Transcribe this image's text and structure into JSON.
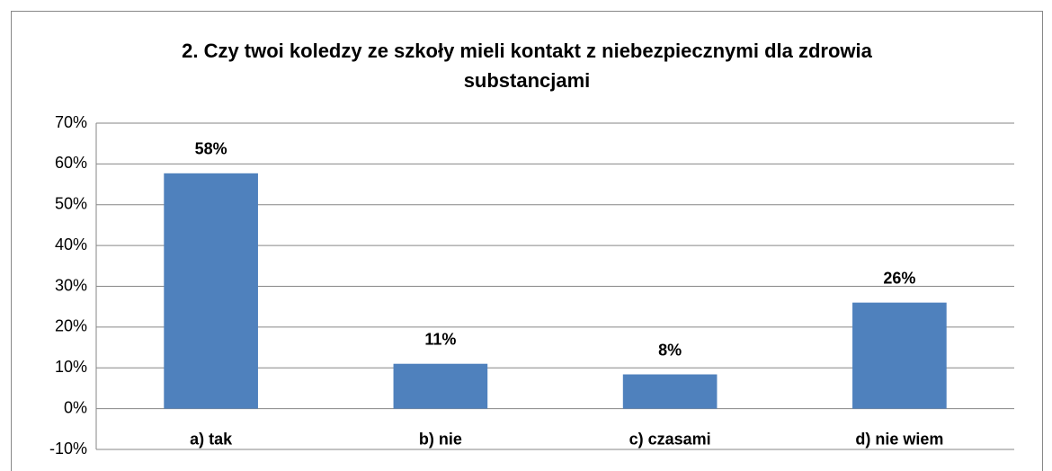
{
  "chart_data": {
    "type": "bar",
    "title": "2. Czy twoi koledzy ze szkoły mieli kontakt z niebezpiecznymi dla zdrowia substancjami",
    "categories": [
      "a) tak",
      "b) nie",
      "c) czasami",
      "d) nie wiem"
    ],
    "values": [
      57.7,
      11,
      8.4,
      26
    ],
    "value_labels": [
      "58%",
      "11%",
      "8%",
      "26%"
    ],
    "color": "#4f81bd",
    "ylim": [
      -10,
      70
    ],
    "yticks": [
      {
        "value": -10,
        "label": "-10%"
      },
      {
        "value": 0,
        "label": "0%"
      },
      {
        "value": 10,
        "label": "10%"
      },
      {
        "value": 20,
        "label": "20%"
      },
      {
        "value": 30,
        "label": "30%"
      },
      {
        "value": 40,
        "label": "40%"
      },
      {
        "value": 50,
        "label": "50%"
      },
      {
        "value": 60,
        "label": "60%"
      },
      {
        "value": 70,
        "label": "70%"
      }
    ],
    "grid": true
  }
}
